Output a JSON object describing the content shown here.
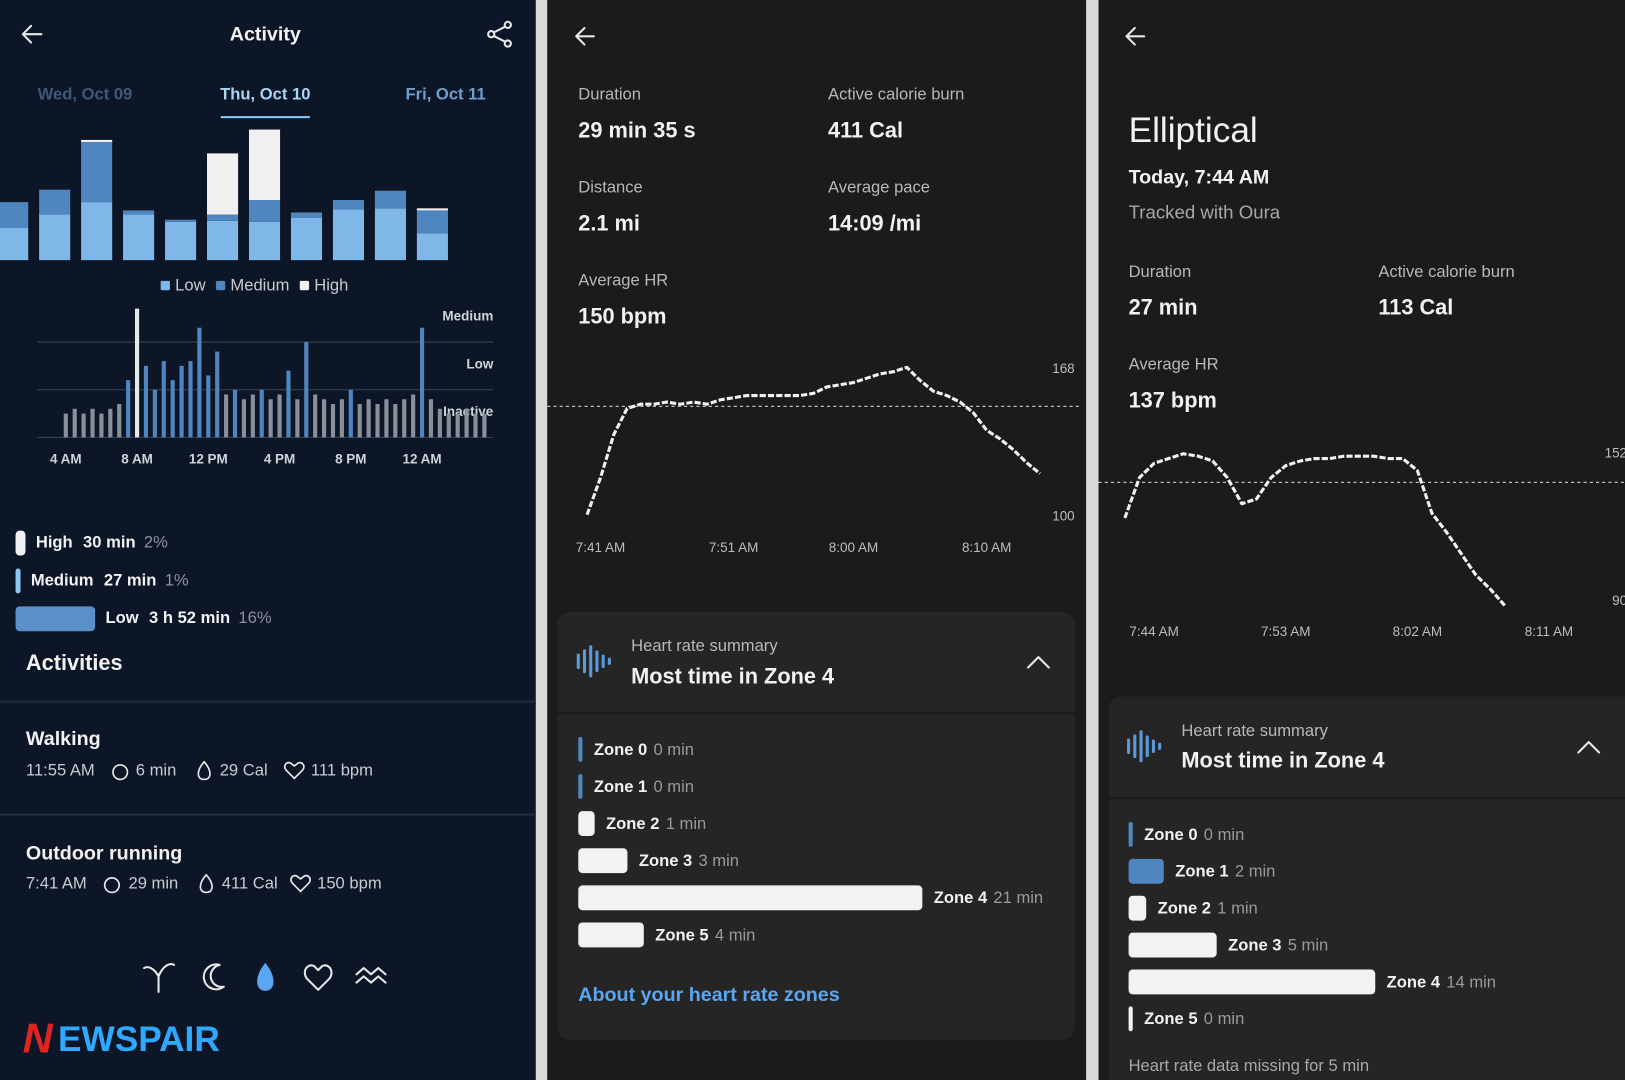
{
  "activity": {
    "title": "Activity",
    "dates": [
      "Wed, Oct 09",
      "Thu, Oct 10",
      "Fri, Oct 11"
    ],
    "intensity_chart": {
      "type": "bar",
      "categories": [
        null,
        null,
        null,
        null,
        null,
        null,
        null,
        null,
        null,
        null,
        null
      ],
      "ylim": [
        0,
        130
      ],
      "series": [
        {
          "name": "Low",
          "color": "#7fb8e8",
          "values": [
            31,
            44,
            56,
            44,
            37,
            38,
            37,
            41,
            49,
            50,
            26
          ]
        },
        {
          "name": "Medium",
          "color": "#4f86c0",
          "values": [
            25,
            24,
            58,
            4,
            2,
            6,
            21,
            5,
            9,
            17,
            22
          ]
        },
        {
          "name": "High",
          "color": "#f0f0f0",
          "values": [
            0,
            0,
            2,
            0,
            0,
            59,
            68,
            0,
            0,
            0,
            2
          ]
        }
      ]
    },
    "timeline_chart": {
      "type": "bar",
      "color": "#4f86c0",
      "x": [
        4,
        4.5,
        5,
        5.5,
        6,
        6.5,
        7,
        7.5,
        8,
        8.5,
        9,
        9.5,
        10,
        10.5,
        11,
        11.5,
        12,
        12.5,
        13,
        13.5,
        14,
        14.5,
        15,
        15.5,
        16,
        16.5,
        17,
        17.5,
        18,
        18.5,
        19,
        19.5,
        20,
        20.5,
        21,
        21.5,
        22,
        22.5,
        23,
        23.5,
        24,
        24.5,
        25,
        25.5,
        26,
        26.5,
        27,
        27.5
      ],
      "values": [
        0.5,
        0.6,
        0.5,
        0.6,
        0.5,
        0.6,
        0.7,
        1.2,
        2.7,
        1.5,
        1.0,
        1.6,
        1.2,
        1.5,
        1.6,
        2.3,
        1.3,
        1.8,
        0.9,
        1.0,
        0.8,
        0.9,
        1.0,
        0.8,
        0.9,
        1.4,
        0.8,
        2.0,
        0.9,
        0.8,
        0.7,
        0.8,
        1.0,
        0.7,
        0.8,
        0.7,
        0.8,
        0.7,
        0.8,
        0.9,
        2.3,
        0.8,
        0.6,
        0.5,
        0.5,
        0.6,
        0.5,
        0.5
      ],
      "xlim": [
        2.4,
        28
      ],
      "xticks": [
        {
          "value": 4,
          "label": "4 AM"
        },
        {
          "value": 8,
          "label": "8 AM"
        },
        {
          "value": 12,
          "label": "12 PM"
        },
        {
          "value": 16,
          "label": "4 PM"
        },
        {
          "value": 20,
          "label": "8 PM"
        },
        {
          "value": 24,
          "label": "12 AM"
        }
      ],
      "ylim": [
        0,
        2.7
      ],
      "yticks": [
        {
          "value": 0,
          "label": "Inactive"
        },
        {
          "value": 1,
          "label": "Low"
        },
        {
          "value": 2,
          "label": "Medium"
        }
      ],
      "grid": true
    },
    "breakdown": [
      {
        "name": "High",
        "duration": "30 min",
        "value": 2,
        "value_label": "2%",
        "color": "#f0f0f0"
      },
      {
        "name": "Medium",
        "duration": "27 min",
        "value": 1,
        "value_label": "1%",
        "color": "#8cc8f5"
      },
      {
        "name": "Low",
        "duration": "3 h 52 min",
        "value": 16,
        "value_label": "16%",
        "color": "#5b8fc9"
      }
    ],
    "activities_title": "Activities",
    "activities": [
      {
        "name": "Walking",
        "time": "11:55 AM",
        "duration": "6 min",
        "calories": "29 Cal",
        "heart_rate": "111 bpm"
      },
      {
        "name": "Outdoor running",
        "time": "7:41 AM",
        "duration": "29 min",
        "calories": "411 Cal",
        "heart_rate": "150 bpm"
      }
    ]
  },
  "logo": {
    "first": "N",
    "rest": "EWSPAIR"
  },
  "run": {
    "stats": [
      {
        "label": "Duration",
        "value": "29 min 35 s"
      },
      {
        "label": "Active calorie burn",
        "value": "411 Cal"
      },
      {
        "label": "Distance",
        "value": "2.1 mi"
      },
      {
        "label": "Average pace",
        "value": "14:09 /mi"
      },
      {
        "label": "Average HR",
        "value": "150 bpm"
      }
    ],
    "hr_chart": {
      "type": "line",
      "color": "#f2f2f2",
      "x": [
        460,
        461,
        462,
        463,
        464,
        465,
        466,
        467,
        468,
        469,
        470,
        471,
        472,
        473,
        474,
        475,
        476,
        477,
        478,
        479,
        480,
        481,
        482,
        483,
        484,
        485,
        486,
        487,
        488,
        489,
        490,
        491,
        492,
        493,
        494
      ],
      "values": [
        101,
        118,
        138,
        150,
        152,
        152,
        153,
        152,
        153,
        152,
        154,
        155,
        156,
        156,
        156,
        156,
        156,
        157,
        160,
        161,
        162,
        164,
        166,
        167,
        169,
        163,
        158,
        156,
        153,
        148,
        140,
        136,
        131,
        125,
        120
      ],
      "xlim": [
        457,
        497
      ],
      "xticks": [
        {
          "value": 461,
          "label": "7:41 AM"
        },
        {
          "value": 471,
          "label": "7:51 AM"
        },
        {
          "value": 480,
          "label": "8:00 AM"
        },
        {
          "value": 490,
          "label": "8:10 AM"
        }
      ],
      "ylim": [
        85,
        185
      ],
      "yticks": [
        168,
        100
      ],
      "reference_line": 151
    },
    "summary": {
      "label": "Heart rate summary",
      "headline": "Most time in Zone 4",
      "zones": {
        "type": "bar",
        "categories": [
          "Zone 0",
          "Zone 1",
          "Zone 2",
          "Zone 3",
          "Zone 4",
          "Zone 5"
        ],
        "values": [
          0,
          0,
          1,
          3,
          21,
          4
        ],
        "value_labels": [
          "0 min",
          "0 min",
          "1 min",
          "3 min",
          "21 min",
          "4 min"
        ],
        "colors": [
          "#4f86c0",
          "#4f86c0",
          "#f2f2f2",
          "#f2f2f2",
          "#f2f2f2",
          "#f2f2f2"
        ]
      },
      "link": "About your heart rate zones"
    }
  },
  "elliptical": {
    "title": "Elliptical",
    "when": "Today, 7:44 AM",
    "source": "Tracked with Oura",
    "stats": [
      {
        "label": "Duration",
        "value": "27 min"
      },
      {
        "label": "Active calorie burn",
        "value": "113 Cal"
      },
      {
        "label": "Average HR",
        "value": "137 bpm"
      }
    ],
    "hr_chart": {
      "type": "line",
      "color": "#f2f2f2",
      "x": [
        462,
        463,
        464,
        465,
        466,
        467,
        468,
        469,
        470,
        471,
        472,
        473,
        474,
        475,
        476,
        477,
        478,
        479,
        480,
        481,
        482,
        483,
        484,
        485,
        486,
        487,
        488
      ],
      "values": [
        125,
        142,
        148,
        150,
        152,
        151,
        149,
        142,
        131,
        133,
        142,
        147,
        149,
        150,
        150,
        151,
        151,
        151,
        150,
        150,
        145,
        127,
        119,
        110,
        101,
        95,
        88
      ],
      "xlim": [
        460.2,
        496.2
      ],
      "xticks": [
        {
          "value": 464,
          "label": "7:44 AM"
        },
        {
          "value": 473,
          "label": "7:53 AM"
        },
        {
          "value": 482,
          "label": "8:02 AM"
        },
        {
          "value": 491,
          "label": "8:11 AM"
        }
      ],
      "ylim": [
        80,
        165
      ],
      "yticks": [
        152,
        90
      ],
      "reference_line": 140
    },
    "summary": {
      "label": "Heart rate summary",
      "headline": "Most time in Zone 4",
      "zones": {
        "type": "bar",
        "categories": [
          "Zone 0",
          "Zone 1",
          "Zone 2",
          "Zone 3",
          "Zone 4",
          "Zone 5"
        ],
        "values": [
          0,
          2,
          1,
          5,
          14,
          0
        ],
        "value_labels": [
          "0 min",
          "2 min",
          "1 min",
          "5 min",
          "14 min",
          "0 min"
        ],
        "colors": [
          "#4f86c0",
          "#4f86c0",
          "#f2f2f2",
          "#f2f2f2",
          "#f2f2f2",
          "#f2f2f2"
        ]
      },
      "note": "Heart rate data missing for 5 min"
    }
  }
}
